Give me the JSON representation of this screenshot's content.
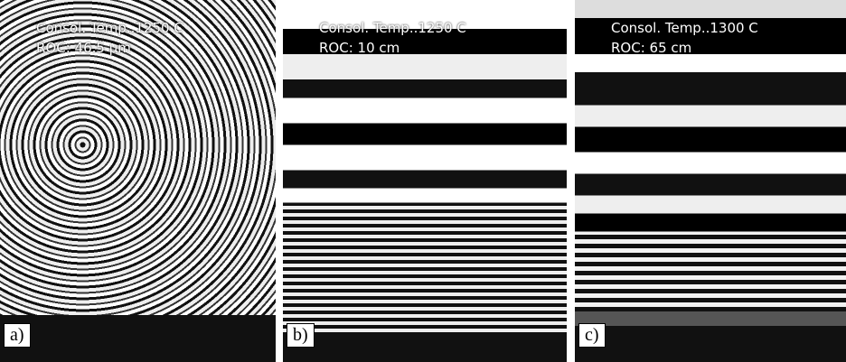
{
  "panels": [
    {
      "label": "a)",
      "caption_lines": [
        "Consol. Temp..1250 C",
        "ROC: 46.5 μm"
      ]
    },
    {
      "label": "b)",
      "caption_lines": [
        "Consol. Temp..1250 C",
        "ROC: 10 cm"
      ]
    },
    {
      "label": "c)",
      "caption_lines": [
        "Consol. Temp..1300 C",
        "ROC: 65 cm"
      ]
    }
  ]
}
